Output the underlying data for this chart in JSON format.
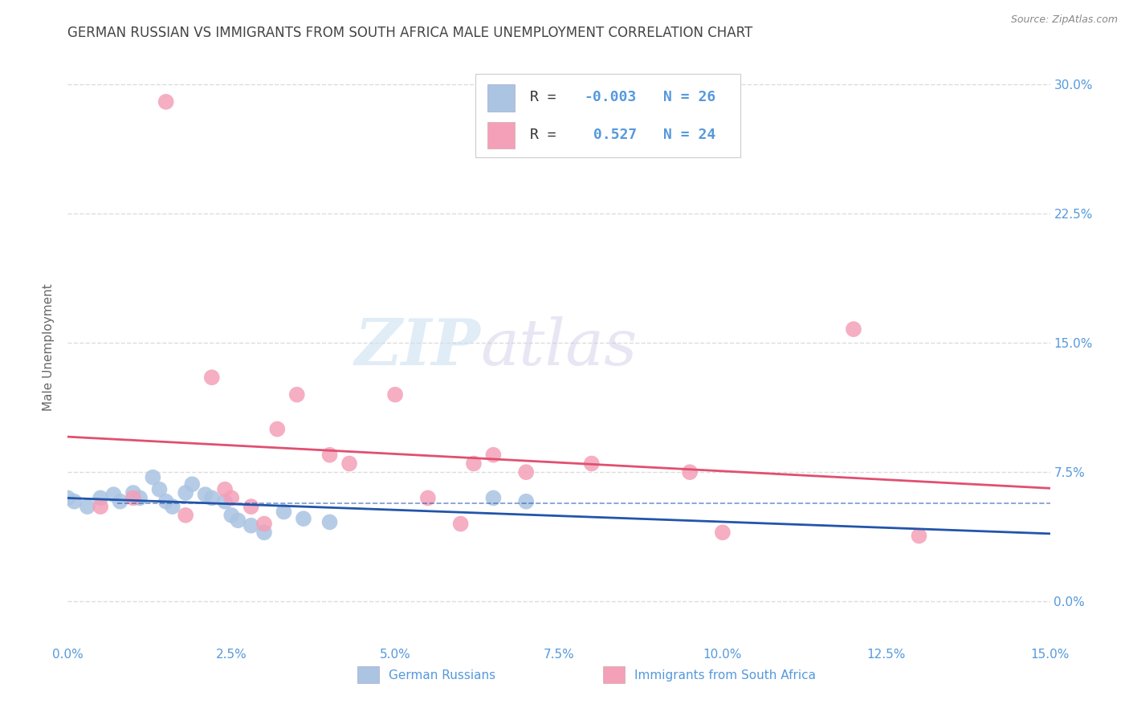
{
  "title": "GERMAN RUSSIAN VS IMMIGRANTS FROM SOUTH AFRICA MALE UNEMPLOYMENT CORRELATION CHART",
  "source": "Source: ZipAtlas.com",
  "ylabel": "Male Unemployment",
  "xlim": [
    0.0,
    0.15
  ],
  "ylim": [
    -0.025,
    0.32
  ],
  "watermark_zip": "ZIP",
  "watermark_atlas": "atlas",
  "series1_name": "German Russians",
  "series1_color": "#aac4e2",
  "series1_R": -0.003,
  "series1_N": 26,
  "series1_line_color": "#2255aa",
  "series1_x": [
    0.0,
    0.001,
    0.003,
    0.005,
    0.007,
    0.008,
    0.01,
    0.011,
    0.013,
    0.014,
    0.015,
    0.016,
    0.018,
    0.019,
    0.021,
    0.022,
    0.024,
    0.025,
    0.026,
    0.028,
    0.03,
    0.033,
    0.036,
    0.04,
    0.065,
    0.07
  ],
  "series1_y": [
    0.06,
    0.058,
    0.055,
    0.06,
    0.062,
    0.058,
    0.063,
    0.06,
    0.072,
    0.065,
    0.058,
    0.055,
    0.063,
    0.068,
    0.062,
    0.06,
    0.058,
    0.05,
    0.047,
    0.044,
    0.04,
    0.052,
    0.048,
    0.046,
    0.06,
    0.058
  ],
  "series2_name": "Immigrants from South Africa",
  "series2_color": "#f4a0b8",
  "series2_R": 0.527,
  "series2_N": 24,
  "series2_line_color": "#e05070",
  "series2_x": [
    0.005,
    0.01,
    0.015,
    0.018,
    0.022,
    0.024,
    0.025,
    0.028,
    0.03,
    0.032,
    0.035,
    0.04,
    0.043,
    0.05,
    0.055,
    0.06,
    0.062,
    0.065,
    0.07,
    0.08,
    0.095,
    0.1,
    0.12,
    0.13
  ],
  "series2_y": [
    0.055,
    0.06,
    0.29,
    0.05,
    0.13,
    0.065,
    0.06,
    0.055,
    0.045,
    0.1,
    0.12,
    0.085,
    0.08,
    0.12,
    0.06,
    0.045,
    0.08,
    0.085,
    0.075,
    0.08,
    0.075,
    0.04,
    0.158,
    0.038
  ],
  "title_color": "#444444",
  "axis_label_color": "#5599dd",
  "source_color": "#888888",
  "background_color": "#ffffff",
  "grid_color": "#dddddd"
}
